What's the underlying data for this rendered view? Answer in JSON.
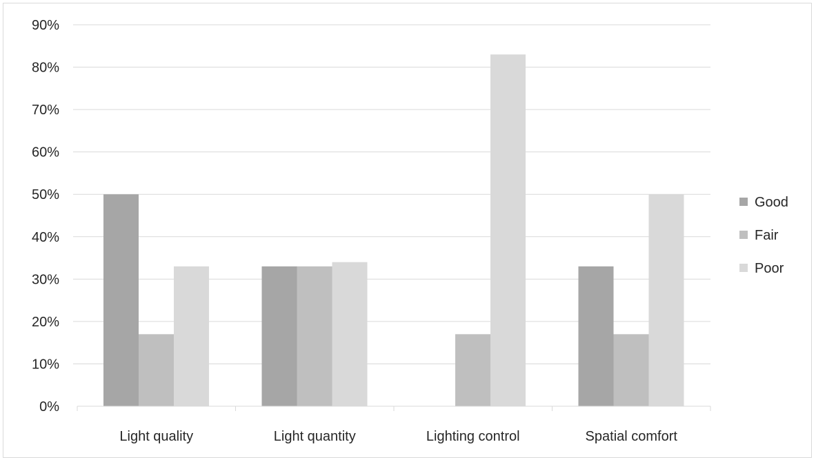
{
  "chart_data": {
    "type": "bar",
    "title": "",
    "xlabel": "",
    "ylabel": "",
    "categories": [
      "Light quality",
      "Light quantity",
      "Lighting control",
      "Spatial comfort"
    ],
    "series": [
      {
        "name": "Good",
        "values": [
          50,
          33,
          0,
          33
        ],
        "color": "#a6a6a6"
      },
      {
        "name": "Fair",
        "values": [
          17,
          33,
          17,
          17
        ],
        "color": "#bfbfbf"
      },
      {
        "name": "Poor",
        "values": [
          33,
          34,
          83,
          50
        ],
        "color": "#d9d9d9"
      }
    ],
    "ylim": [
      0,
      90
    ],
    "yticks": [
      0,
      10,
      20,
      30,
      40,
      50,
      60,
      70,
      80,
      90
    ],
    "ytick_labels": [
      "0%",
      "10%",
      "20%",
      "30%",
      "40%",
      "50%",
      "60%",
      "70%",
      "80%",
      "90%"
    ],
    "grid": true,
    "legend_position": "right"
  }
}
